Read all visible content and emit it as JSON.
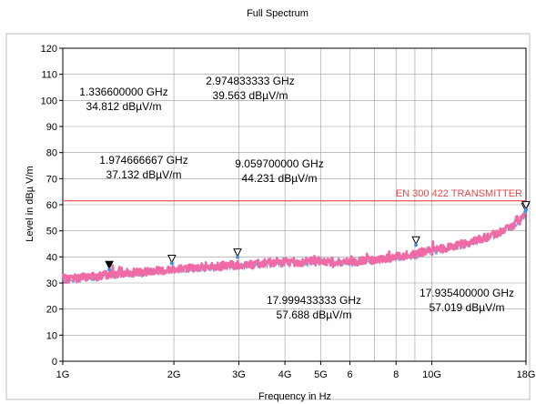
{
  "chart_data": {
    "type": "line",
    "title": "Full Spectrum",
    "xlabel": "Frequency in Hz",
    "ylabel": "Level in dBµ V/m",
    "x_scale": "log",
    "xlim": [
      1,
      18
    ],
    "ylim": [
      0,
      120
    ],
    "x_unit": "GHz",
    "grid": true,
    "x_ticks": [
      {
        "value": 1,
        "label": "1G"
      },
      {
        "value": 2,
        "label": "2G"
      },
      {
        "value": 3,
        "label": "3G"
      },
      {
        "value": 4,
        "label": "4G"
      },
      {
        "value": 5,
        "label": "5G"
      },
      {
        "value": 6,
        "label": "6"
      },
      {
        "value": 8,
        "label": "8"
      },
      {
        "value": 10,
        "label": "10G"
      },
      {
        "value": 18,
        "label": "18G"
      }
    ],
    "x_minor_gridlines": [
      7,
      9
    ],
    "y_ticks": [
      0,
      10,
      20,
      30,
      40,
      50,
      60,
      70,
      80,
      90,
      100,
      110,
      120
    ],
    "series": [
      {
        "color": "#f06aa6",
        "x": [
          1.0,
          1.1,
          1.2,
          1.3,
          1.336,
          1.4,
          1.5,
          1.6,
          1.7,
          1.8,
          1.9,
          1.975,
          2.1,
          2.3,
          2.5,
          2.7,
          2.975,
          3.2,
          3.5,
          3.8,
          4.0,
          4.5,
          5.0,
          5.5,
          6.0,
          6.5,
          7.0,
          7.5,
          8.0,
          8.5,
          9.06,
          9.5,
          10.0,
          11.0,
          12.0,
          13.0,
          14.0,
          15.0,
          16.0,
          17.0,
          17.5,
          17.935,
          18.0
        ],
        "y": [
          31.5,
          32,
          32.5,
          33,
          33.5,
          33.5,
          34,
          34,
          34.5,
          35,
          35,
          35.5,
          35.5,
          36,
          36,
          36.5,
          37,
          37,
          37.5,
          38,
          38,
          38,
          38.5,
          38,
          38,
          38.5,
          39,
          39.5,
          40,
          40.5,
          41,
          42,
          42.5,
          43.5,
          44.5,
          46,
          47.5,
          49,
          51,
          53,
          54.5,
          56,
          57
        ]
      }
    ],
    "limit_line": {
      "label": "EN 300 422 TRANSMITTER",
      "value": 61.5,
      "color": "#e8474c"
    },
    "markers": [
      {
        "freq": 1.3366,
        "level": 34.812,
        "filled": true
      },
      {
        "freq": 1.974666667,
        "level": 37.132,
        "filled": false
      },
      {
        "freq": 2.974833333,
        "level": 39.563,
        "filled": false
      },
      {
        "freq": 9.0597,
        "level": 44.231,
        "filled": false
      },
      {
        "freq": 17.9354,
        "level": 57.019,
        "filled": false
      },
      {
        "freq": 17.999433333,
        "level": 57.688,
        "filled": false
      }
    ],
    "annotations": [
      {
        "freq": "1.336600000 GHz",
        "level": "34.812 dBµV/m"
      },
      {
        "freq": "2.974833333 GHz",
        "level": "39.563 dBµV/m"
      },
      {
        "freq": "1.974666667 GHz",
        "level": "37.132 dBµV/m"
      },
      {
        "freq": "9.059700000 GHz",
        "level": "44.231 dBµV/m"
      },
      {
        "freq": "17.999433333 GHz",
        "level": "57.688 dBµV/m"
      },
      {
        "freq": "17.935400000 GHz",
        "level": "57.019 dBµV/m"
      }
    ]
  }
}
